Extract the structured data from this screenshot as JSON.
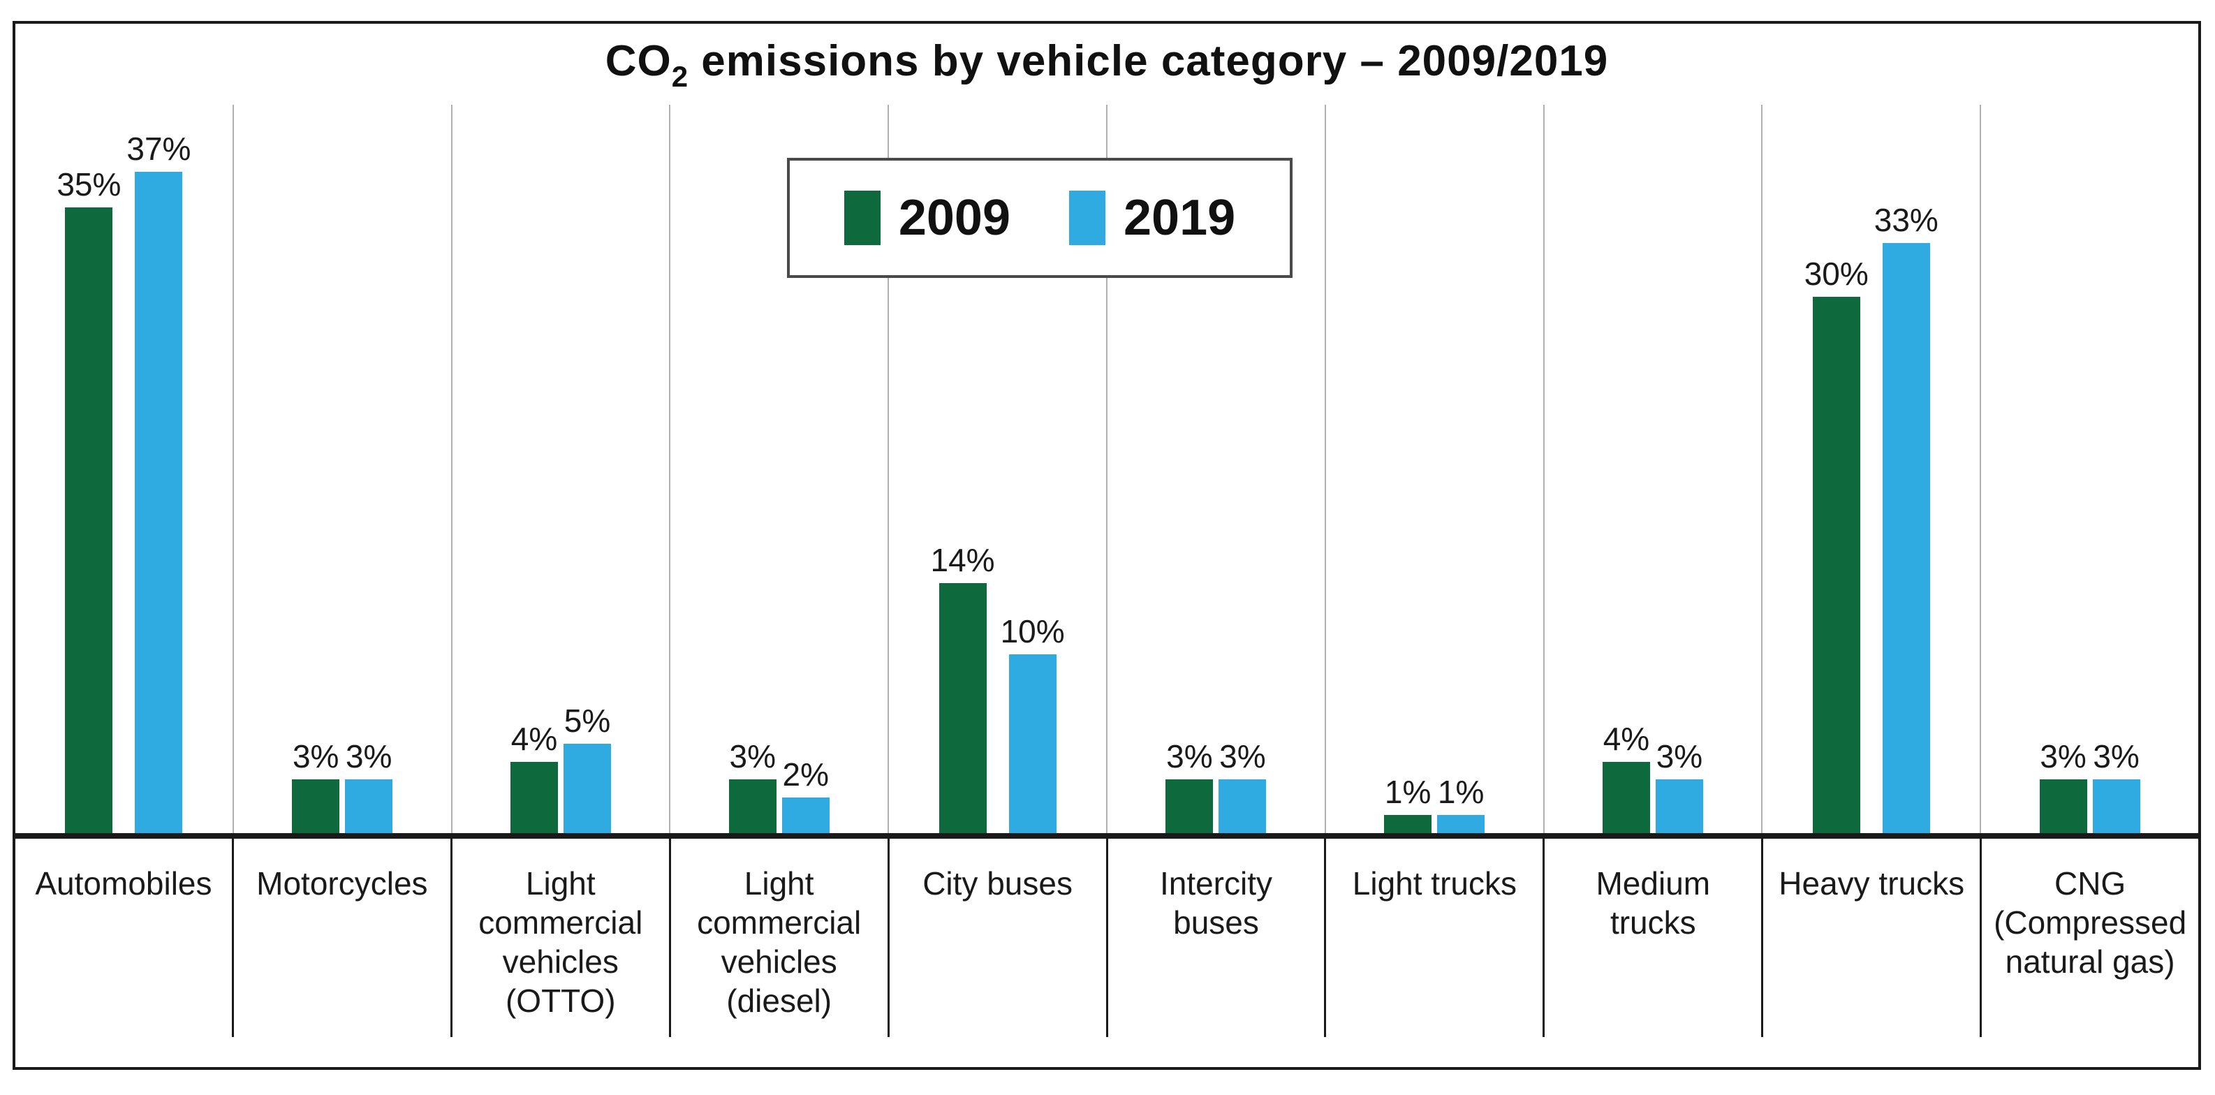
{
  "page": {
    "background": "#ffffff",
    "frame_border_color": "#1a1a1a"
  },
  "header": {
    "title_pre": "CO",
    "title_sub": "2",
    "title_post": " emissions by vehicle category – 2009/2019"
  },
  "legend": {
    "border_color": "#4a4a4a",
    "items": [
      {
        "label": "2009",
        "color": "#0E6A3C"
      },
      {
        "label": "2019",
        "color": "#2FABE1"
      }
    ]
  },
  "chart_data": {
    "type": "bar",
    "title": "CO₂ emissions by vehicle category – 2009/2019",
    "categories": [
      "Automobiles",
      "Motorcycles",
      "Light commercial vehicles (OTTO)",
      "Light commercial vehicles (diesel)",
      "City buses",
      "Intercity buses",
      "Light trucks",
      "Medium trucks",
      "Heavy trucks",
      "CNG (Compressed natural gas)"
    ],
    "series": [
      {
        "name": "2009",
        "color": "#0E6A3C",
        "values": [
          35,
          3,
          4,
          3,
          14,
          3,
          1,
          4,
          30,
          3
        ]
      },
      {
        "name": "2019",
        "color": "#2FABE1",
        "values": [
          37,
          3,
          5,
          2,
          10,
          3,
          1,
          3,
          33,
          3
        ]
      }
    ],
    "value_suffix": "%",
    "ylim": [
      0,
      40
    ],
    "xlabel": "",
    "ylabel": "",
    "grid": "vertical category separators only",
    "legend_position": "top center overlay",
    "colors": {
      "gridline": "#b0b0b0",
      "axis": "#1a1a1a",
      "text": "#1a1a1a"
    }
  }
}
